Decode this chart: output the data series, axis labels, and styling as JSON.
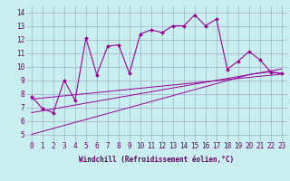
{
  "xlabel": "Windchill (Refroidissement éolien,°C)",
  "bg_color": "#c8eef0",
  "grid_color": "#aaaacc",
  "line_color": "#990099",
  "x_hours": [
    0,
    1,
    2,
    3,
    4,
    5,
    6,
    7,
    8,
    9,
    10,
    11,
    12,
    13,
    14,
    15,
    16,
    17,
    18,
    19,
    20,
    21,
    22,
    23
  ],
  "y_main": [
    7.8,
    6.9,
    6.6,
    9.0,
    7.5,
    12.1,
    9.4,
    11.5,
    11.6,
    9.5,
    12.4,
    12.7,
    12.5,
    13.0,
    13.0,
    13.8,
    13.0,
    13.5,
    9.8,
    10.4,
    11.1,
    10.5,
    9.6,
    9.5
  ],
  "y_lin1": [
    7.6,
    7.68,
    7.76,
    7.84,
    7.92,
    8.0,
    8.08,
    8.16,
    8.24,
    8.32,
    8.4,
    8.48,
    8.56,
    8.64,
    8.72,
    8.8,
    8.88,
    8.96,
    9.04,
    9.12,
    9.2,
    9.28,
    9.36,
    9.44
  ],
  "y_lin2": [
    6.6,
    6.74,
    6.88,
    7.02,
    7.16,
    7.3,
    7.44,
    7.58,
    7.72,
    7.86,
    8.0,
    8.14,
    8.28,
    8.42,
    8.56,
    8.7,
    8.84,
    8.98,
    9.12,
    9.26,
    9.4,
    9.54,
    9.68,
    9.82
  ],
  "y_lin3": [
    5.0,
    5.22,
    5.44,
    5.66,
    5.88,
    6.1,
    6.32,
    6.54,
    6.76,
    6.98,
    7.2,
    7.42,
    7.64,
    7.86,
    8.08,
    8.3,
    8.52,
    8.74,
    8.96,
    9.18,
    9.4,
    9.52,
    9.6,
    9.45
  ],
  "ylim": [
    4.5,
    14.5
  ],
  "yticks": [
    5,
    6,
    7,
    8,
    9,
    10,
    11,
    12,
    13,
    14
  ],
  "tick_fontsize": 5.5,
  "xlabel_fontsize": 5.5
}
